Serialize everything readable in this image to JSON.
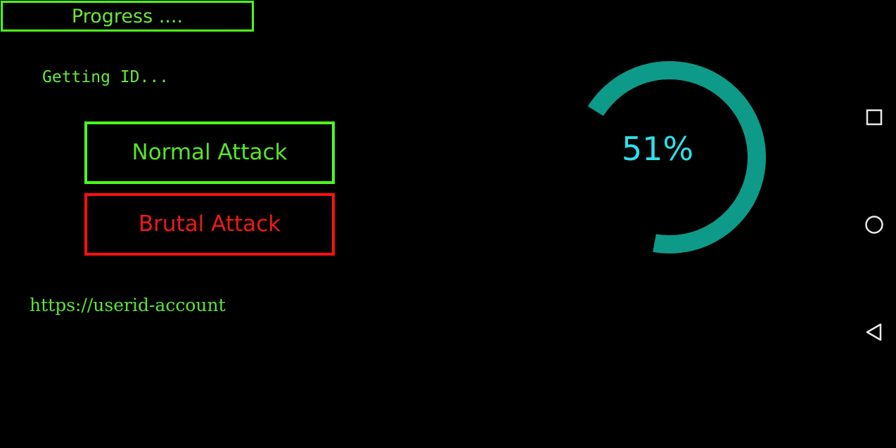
{
  "header": {
    "title": "Progress ...."
  },
  "status_text": "Getting ID...",
  "buttons": {
    "normal": "Normal Attack",
    "brutal": "Brutal Attack"
  },
  "url_text": "https://userid-account",
  "progress": {
    "value": 51,
    "label": "51%",
    "ring_color": "#0e9a88",
    "text_color": "#2ee0ea"
  },
  "navbar": {
    "icons": [
      "recents-icon",
      "home-icon",
      "back-icon"
    ]
  }
}
